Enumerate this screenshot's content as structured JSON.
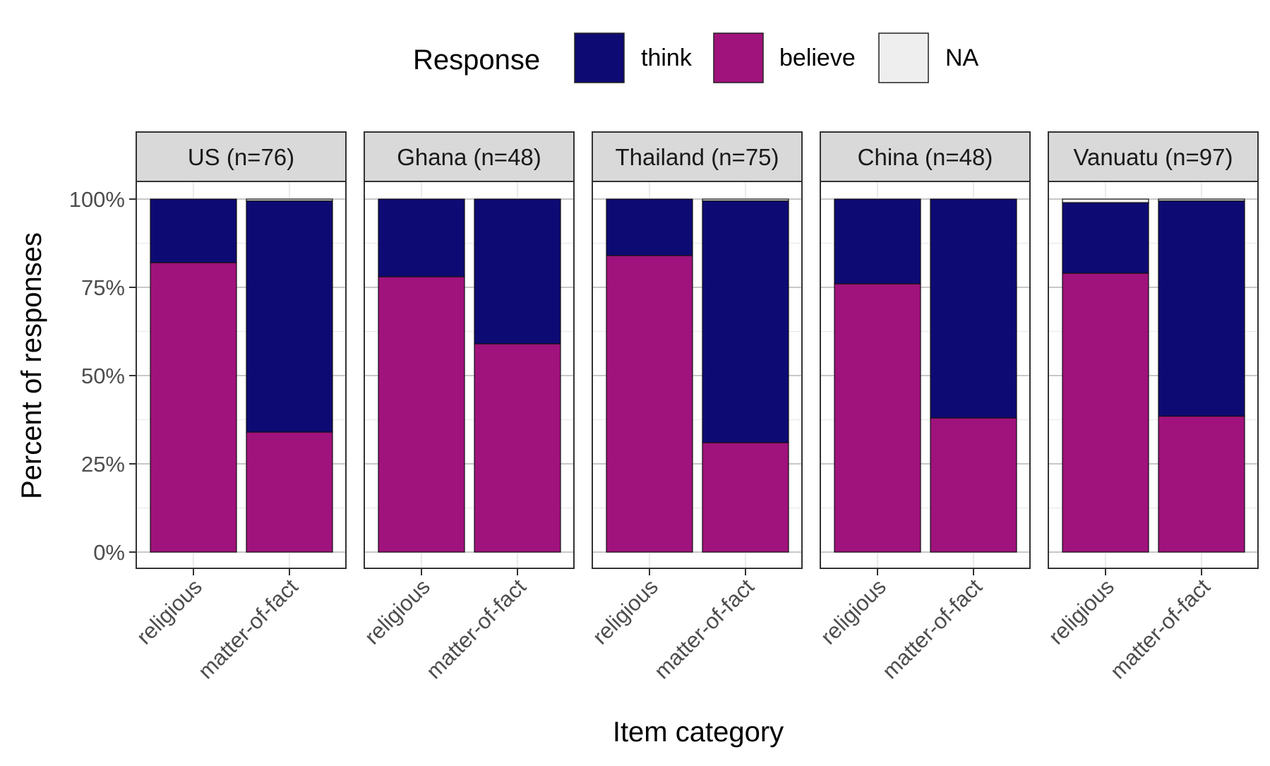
{
  "chart_data": {
    "type": "bar",
    "stacked": true,
    "percent_scale": true,
    "legend": {
      "title": "Response",
      "position": "top",
      "entries": [
        {
          "key": "think",
          "label": "think",
          "color": "#0e0a73"
        },
        {
          "key": "believe",
          "label": "believe",
          "color": "#a0127c"
        },
        {
          "key": "na",
          "label": "NA",
          "color": "#eeeeee"
        }
      ]
    },
    "xlabel": "Item category",
    "ylabel": "Percent of responses",
    "ylim": [
      0,
      1
    ],
    "yticks": [
      {
        "value": 0,
        "label": "0%"
      },
      {
        "value": 0.25,
        "label": "25%"
      },
      {
        "value": 0.5,
        "label": "50%"
      },
      {
        "value": 0.75,
        "label": "75%"
      },
      {
        "value": 1,
        "label": "100%"
      }
    ],
    "categories": [
      "religious",
      "matter-of-fact"
    ],
    "stack_order": [
      "believe",
      "think",
      "na"
    ],
    "grid": true,
    "facets": [
      {
        "label": "US (n=76)",
        "bars": [
          {
            "category": "religious",
            "believe": 0.82,
            "think": 0.18,
            "na": 0.0
          },
          {
            "category": "matter-of-fact",
            "believe": 0.34,
            "think": 0.655,
            "na": 0.005
          }
        ]
      },
      {
        "label": "Ghana (n=48)",
        "bars": [
          {
            "category": "religious",
            "believe": 0.78,
            "think": 0.22,
            "na": 0.0
          },
          {
            "category": "matter-of-fact",
            "believe": 0.59,
            "think": 0.41,
            "na": 0.0
          }
        ]
      },
      {
        "label": "Thailand (n=75)",
        "bars": [
          {
            "category": "religious",
            "believe": 0.84,
            "think": 0.16,
            "na": 0.0
          },
          {
            "category": "matter-of-fact",
            "believe": 0.31,
            "think": 0.685,
            "na": 0.005
          }
        ]
      },
      {
        "label": "China (n=48)",
        "bars": [
          {
            "category": "religious",
            "believe": 0.76,
            "think": 0.24,
            "na": 0.0
          },
          {
            "category": "matter-of-fact",
            "believe": 0.38,
            "think": 0.62,
            "na": 0.0
          }
        ]
      },
      {
        "label": "Vanuatu (n=97)",
        "bars": [
          {
            "category": "religious",
            "believe": 0.79,
            "think": 0.2,
            "na": 0.01
          },
          {
            "category": "matter-of-fact",
            "believe": 0.385,
            "think": 0.61,
            "na": 0.005
          }
        ]
      }
    ]
  }
}
